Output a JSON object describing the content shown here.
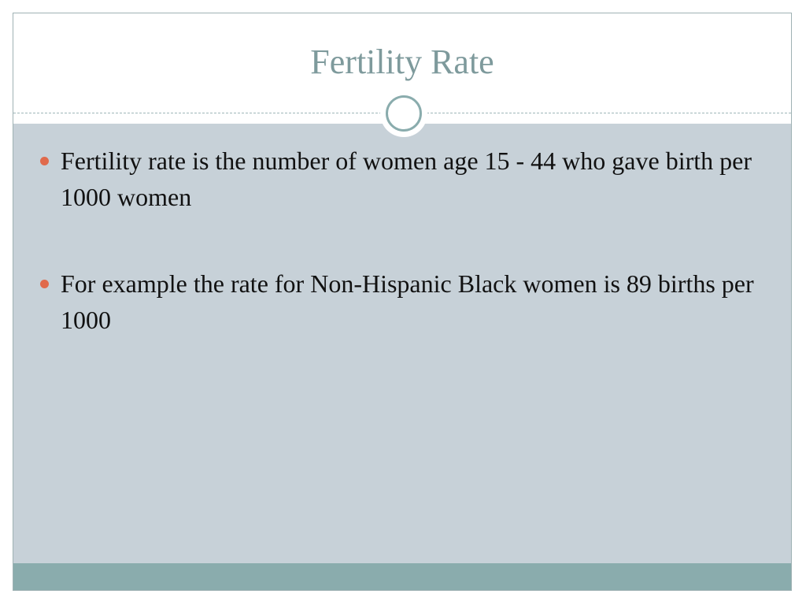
{
  "slide": {
    "title": "Fertility Rate",
    "bullets": [
      {
        "text": "Fertility rate is the number of women age 15 - 44 who gave birth per 1000 women"
      },
      {
        "text": "For example the rate for Non-Hispanic Black women is 89 births per 1000"
      }
    ]
  },
  "colors": {
    "title": "#7e9a9c",
    "content_background": "#c7d1d8",
    "footer_band": "#8aacad",
    "bullet": "#e06a4c",
    "text": "#111111"
  },
  "icons": {
    "bullet": "bullet-dot-icon",
    "ornament": "circle-ring-icon"
  }
}
